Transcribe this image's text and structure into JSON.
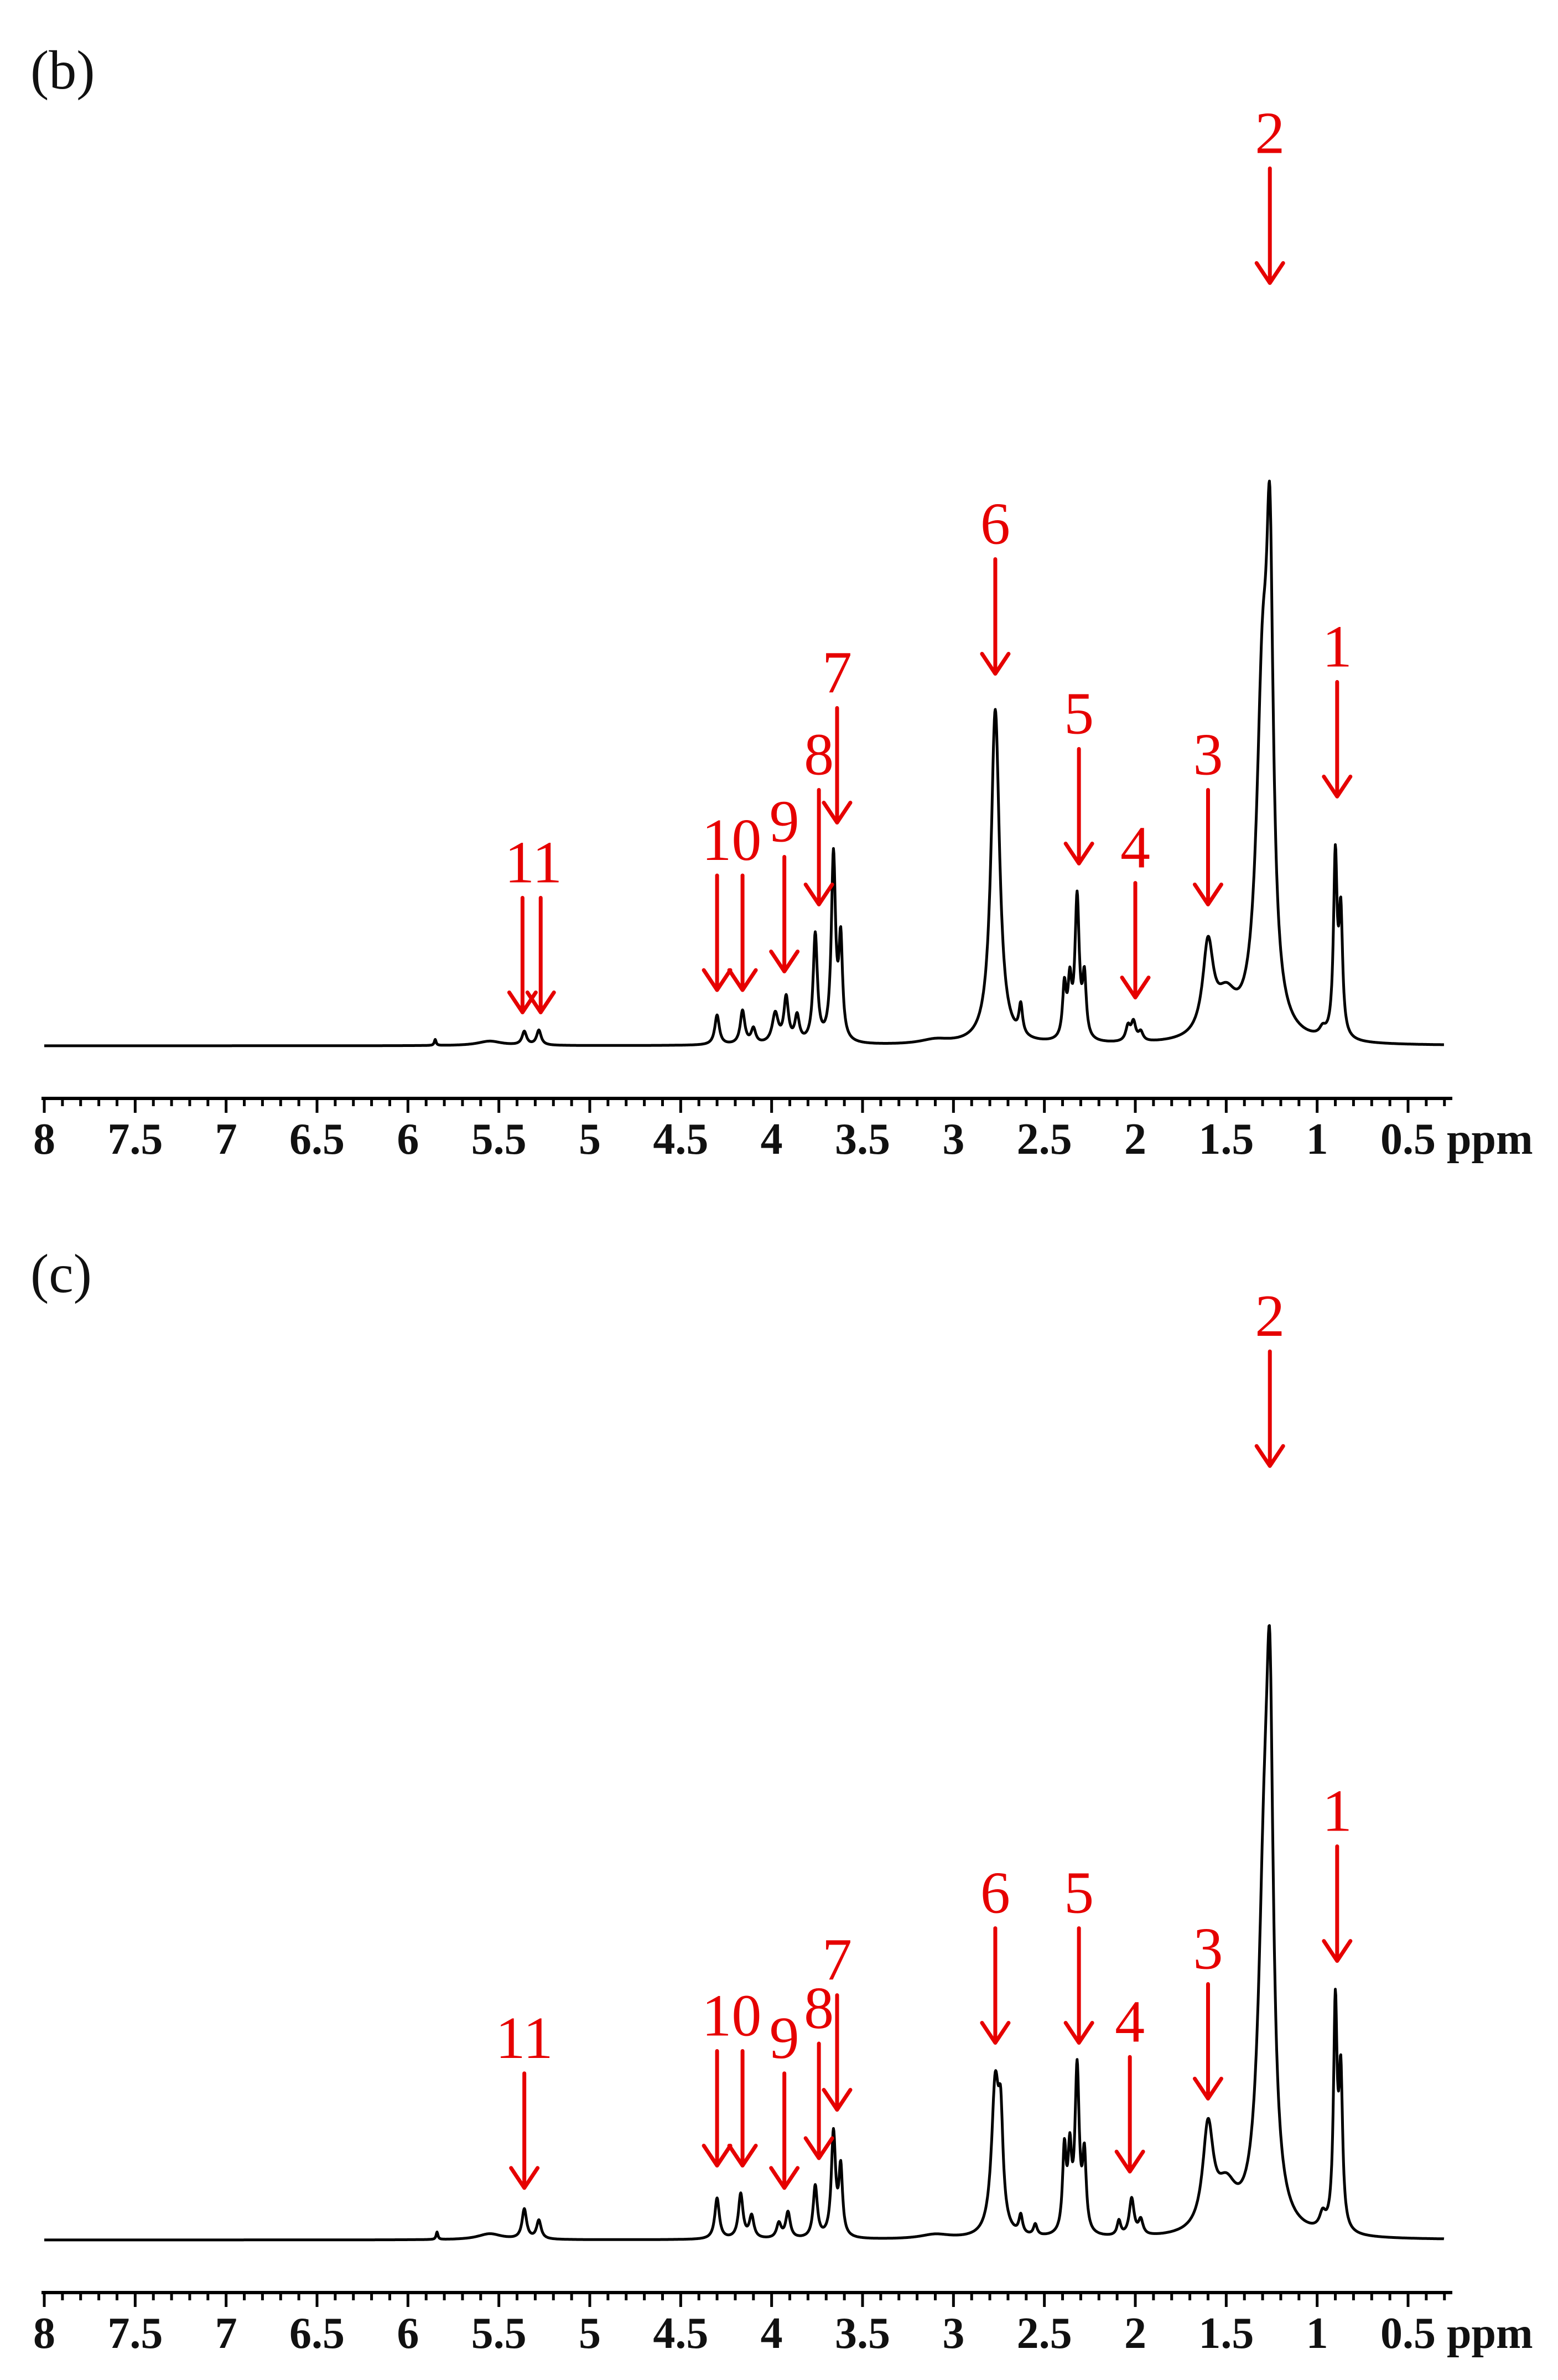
{
  "chart_data": [
    {
      "type": "line",
      "panel_label": "(b)",
      "x_unit": "ppm",
      "xlim": [
        8,
        0.3
      ],
      "x_reversed": true,
      "x_ticks": [
        "8",
        "7.5",
        "7",
        "6.5",
        "6",
        "5.5",
        "5",
        "4.5",
        "4",
        "3.5",
        "3",
        "2.5",
        "2",
        "1.5",
        "1",
        "0.5"
      ],
      "x_tick_values": [
        8,
        7.5,
        7,
        6.5,
        6,
        5.5,
        5,
        4.5,
        4,
        3.5,
        3,
        2.5,
        2,
        1.5,
        1,
        0.5
      ],
      "ylim": [
        0,
        1.0
      ],
      "peaks": [
        {
          "ppm": 5.85,
          "h": 0.008,
          "w": 0.006
        },
        {
          "ppm": 5.55,
          "h": 0.006,
          "w": 0.08
        },
        {
          "ppm": 5.36,
          "h": 0.018,
          "w": 0.015
        },
        {
          "ppm": 5.28,
          "h": 0.02,
          "w": 0.015
        },
        {
          "ppm": 4.3,
          "h": 0.04,
          "w": 0.015
        },
        {
          "ppm": 4.16,
          "h": 0.045,
          "w": 0.015
        },
        {
          "ppm": 4.1,
          "h": 0.02,
          "w": 0.015
        },
        {
          "ppm": 3.98,
          "h": 0.04,
          "w": 0.02
        },
        {
          "ppm": 3.92,
          "h": 0.06,
          "w": 0.015
        },
        {
          "ppm": 3.86,
          "h": 0.035,
          "w": 0.015
        },
        {
          "ppm": 3.76,
          "h": 0.145,
          "w": 0.014
        },
        {
          "ppm": 3.66,
          "h": 0.25,
          "w": 0.014
        },
        {
          "ppm": 3.62,
          "h": 0.13,
          "w": 0.012
        },
        {
          "ppm": 3.1,
          "h": 0.006,
          "w": 0.1
        },
        {
          "ppm": 2.77,
          "h": 0.45,
          "w": 0.028
        },
        {
          "ppm": 2.63,
          "h": 0.04,
          "w": 0.012
        },
        {
          "ppm": 2.39,
          "h": 0.07,
          "w": 0.012
        },
        {
          "ppm": 2.36,
          "h": 0.07,
          "w": 0.012
        },
        {
          "ppm": 2.32,
          "h": 0.19,
          "w": 0.014
        },
        {
          "ppm": 2.28,
          "h": 0.08,
          "w": 0.012
        },
        {
          "ppm": 2.04,
          "h": 0.02,
          "w": 0.015
        },
        {
          "ppm": 2.01,
          "h": 0.025,
          "w": 0.015
        },
        {
          "ppm": 1.97,
          "h": 0.012,
          "w": 0.015
        },
        {
          "ppm": 1.6,
          "h": 0.12,
          "w": 0.035
        },
        {
          "ppm": 1.5,
          "h": 0.05,
          "w": 0.07
        },
        {
          "ppm": 1.3,
          "h": 0.45,
          "w": 0.04
        },
        {
          "ppm": 1.26,
          "h": 0.52,
          "w": 0.022
        },
        {
          "ppm": 0.97,
          "h": 0.01,
          "w": 0.02
        },
        {
          "ppm": 0.9,
          "h": 0.24,
          "w": 0.012
        },
        {
          "ppm": 0.87,
          "h": 0.16,
          "w": 0.012
        }
      ],
      "annotations": [
        {
          "label": "1",
          "ppm": 0.89,
          "arrow_to": 0.335
        },
        {
          "label": "2",
          "ppm": 1.26,
          "arrow_to": 1.025
        },
        {
          "label": "3",
          "ppm": 1.6,
          "arrow_to": 0.19
        },
        {
          "label": "4",
          "ppm": 2.0,
          "arrow_to": 0.065
        },
        {
          "label": "5",
          "ppm": 2.31,
          "arrow_to": 0.245
        },
        {
          "label": "6",
          "ppm": 2.77,
          "arrow_to": 0.5
        },
        {
          "label": "7",
          "ppm": 3.64,
          "arrow_to": 0.3
        },
        {
          "label": "8",
          "ppm": 3.74,
          "arrow_to": 0.19
        },
        {
          "label": "9",
          "ppm": 3.93,
          "arrow_to": 0.1
        },
        {
          "label": "10",
          "ppm": 4.22,
          "arrow_to": 0.075,
          "targets": [
            4.3,
            4.16
          ]
        },
        {
          "label": "11",
          "ppm": 5.31,
          "arrow_to": 0.045,
          "targets": [
            5.37,
            5.27
          ]
        }
      ]
    },
    {
      "type": "line",
      "panel_label": "(c)",
      "x_unit": "ppm",
      "xlim": [
        8,
        0.3
      ],
      "x_reversed": true,
      "x_ticks": [
        "8",
        "7.5",
        "7",
        "6.5",
        "6",
        "5.5",
        "5",
        "4.5",
        "4",
        "3.5",
        "3",
        "2.5",
        "2",
        "1.5",
        "1",
        "0.5"
      ],
      "x_tick_values": [
        8,
        7.5,
        7,
        6.5,
        6,
        5.5,
        5,
        4.5,
        4,
        3.5,
        3,
        2.5,
        2,
        1.5,
        1,
        0.5
      ],
      "ylim": [
        0,
        1.0
      ],
      "peaks": [
        {
          "ppm": 5.84,
          "h": 0.01,
          "w": 0.006
        },
        {
          "ppm": 5.55,
          "h": 0.008,
          "w": 0.08
        },
        {
          "ppm": 5.36,
          "h": 0.04,
          "w": 0.015
        },
        {
          "ppm": 5.28,
          "h": 0.025,
          "w": 0.015
        },
        {
          "ppm": 4.3,
          "h": 0.055,
          "w": 0.015
        },
        {
          "ppm": 4.17,
          "h": 0.06,
          "w": 0.015
        },
        {
          "ppm": 4.11,
          "h": 0.03,
          "w": 0.015
        },
        {
          "ppm": 3.96,
          "h": 0.02,
          "w": 0.015
        },
        {
          "ppm": 3.91,
          "h": 0.035,
          "w": 0.015
        },
        {
          "ppm": 3.76,
          "h": 0.07,
          "w": 0.014
        },
        {
          "ppm": 3.66,
          "h": 0.14,
          "w": 0.014
        },
        {
          "ppm": 3.62,
          "h": 0.09,
          "w": 0.012
        },
        {
          "ppm": 3.1,
          "h": 0.006,
          "w": 0.1
        },
        {
          "ppm": 2.77,
          "h": 0.2,
          "w": 0.025
        },
        {
          "ppm": 2.74,
          "h": 0.12,
          "w": 0.015
        },
        {
          "ppm": 2.63,
          "h": 0.025,
          "w": 0.012
        },
        {
          "ppm": 2.55,
          "h": 0.015,
          "w": 0.012
        },
        {
          "ppm": 2.39,
          "h": 0.11,
          "w": 0.012
        },
        {
          "ppm": 2.36,
          "h": 0.1,
          "w": 0.012
        },
        {
          "ppm": 2.32,
          "h": 0.22,
          "w": 0.014
        },
        {
          "ppm": 2.28,
          "h": 0.1,
          "w": 0.012
        },
        {
          "ppm": 2.09,
          "h": 0.02,
          "w": 0.012
        },
        {
          "ppm": 2.02,
          "h": 0.05,
          "w": 0.016
        },
        {
          "ppm": 1.97,
          "h": 0.02,
          "w": 0.015
        },
        {
          "ppm": 1.6,
          "h": 0.135,
          "w": 0.035
        },
        {
          "ppm": 1.5,
          "h": 0.055,
          "w": 0.07
        },
        {
          "ppm": 1.29,
          "h": 0.45,
          "w": 0.04
        },
        {
          "ppm": 1.26,
          "h": 0.52,
          "w": 0.022
        },
        {
          "ppm": 0.97,
          "h": 0.02,
          "w": 0.02
        },
        {
          "ppm": 0.9,
          "h": 0.3,
          "w": 0.012
        },
        {
          "ppm": 0.87,
          "h": 0.2,
          "w": 0.012
        }
      ],
      "annotations": [
        {
          "label": "1",
          "ppm": 0.89,
          "arrow_to": 0.375
        },
        {
          "label": "2",
          "ppm": 1.26,
          "arrow_to": 1.04
        },
        {
          "label": "3",
          "ppm": 1.6,
          "arrow_to": 0.19
        },
        {
          "label": "4",
          "ppm": 2.03,
          "arrow_to": 0.092
        },
        {
          "label": "5",
          "ppm": 2.31,
          "arrow_to": 0.265
        },
        {
          "label": "6",
          "ppm": 2.77,
          "arrow_to": 0.265
        },
        {
          "label": "7",
          "ppm": 3.64,
          "arrow_to": 0.175
        },
        {
          "label": "8",
          "ppm": 3.74,
          "arrow_to": 0.11
        },
        {
          "label": "9",
          "ppm": 3.93,
          "arrow_to": 0.07
        },
        {
          "label": "10",
          "ppm": 4.22,
          "arrow_to": 0.1,
          "targets": [
            4.3,
            4.16
          ]
        },
        {
          "label": "11",
          "ppm": 5.36,
          "arrow_to": 0.07
        }
      ]
    }
  ]
}
